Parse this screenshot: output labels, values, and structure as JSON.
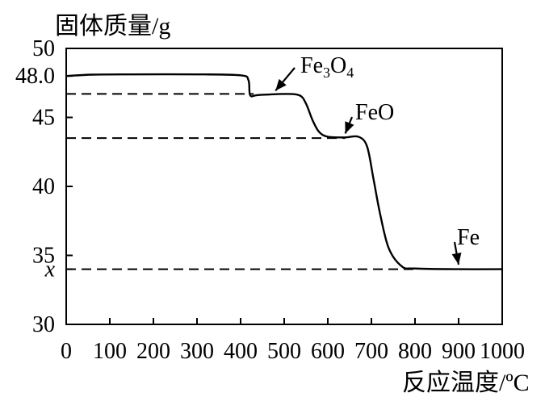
{
  "chart_data": {
    "type": "line",
    "ylabel": "固体质量/g",
    "xlabel": "反应温度/ºC",
    "xlim": [
      0,
      1000
    ],
    "ylim": [
      30,
      50
    ],
    "x_ticks": [
      "0",
      "100",
      "200",
      "300",
      "400",
      "500",
      "600",
      "700",
      "800",
      "900",
      "1000"
    ],
    "y_ticks": [
      "30",
      "35",
      "40",
      "45",
      "50"
    ],
    "y_extra_labels": [
      {
        "label": "48.0",
        "value": 48.0
      },
      {
        "label": "x",
        "value": 34.0
      }
    ],
    "grid": false,
    "series": [
      {
        "points": [
          [
            0,
            48.0
          ],
          [
            60,
            48.1
          ],
          [
            150,
            48.12
          ],
          [
            300,
            48.12
          ],
          [
            400,
            48.05
          ],
          [
            418,
            47.7
          ],
          [
            422,
            46.6
          ],
          [
            440,
            46.62
          ],
          [
            500,
            46.7
          ],
          [
            535,
            46.6
          ],
          [
            550,
            46.0
          ],
          [
            565,
            44.8
          ],
          [
            580,
            43.95
          ],
          [
            600,
            43.6
          ],
          [
            640,
            43.55
          ],
          [
            670,
            43.6
          ],
          [
            690,
            42.9
          ],
          [
            705,
            40.5
          ],
          [
            720,
            38.0
          ],
          [
            740,
            35.5
          ],
          [
            770,
            34.2
          ],
          [
            800,
            34.05
          ],
          [
            900,
            34.0
          ],
          [
            1000,
            34.0
          ]
        ]
      }
    ],
    "reference_lines": [
      {
        "value": 46.7,
        "x_end": 430
      },
      {
        "value": 43.5,
        "x_end": 640
      },
      {
        "value": 34.0,
        "x_end": 800
      }
    ],
    "annotations": [
      {
        "label_main": "Fe",
        "sub1": "3",
        "mid": "O",
        "sub2": "4",
        "target": [
          480,
          46.7
        ]
      },
      {
        "label_main": "FeO",
        "target": [
          640,
          43.6
        ]
      },
      {
        "label_main": "Fe",
        "target": [
          900,
          34.1
        ]
      }
    ]
  }
}
